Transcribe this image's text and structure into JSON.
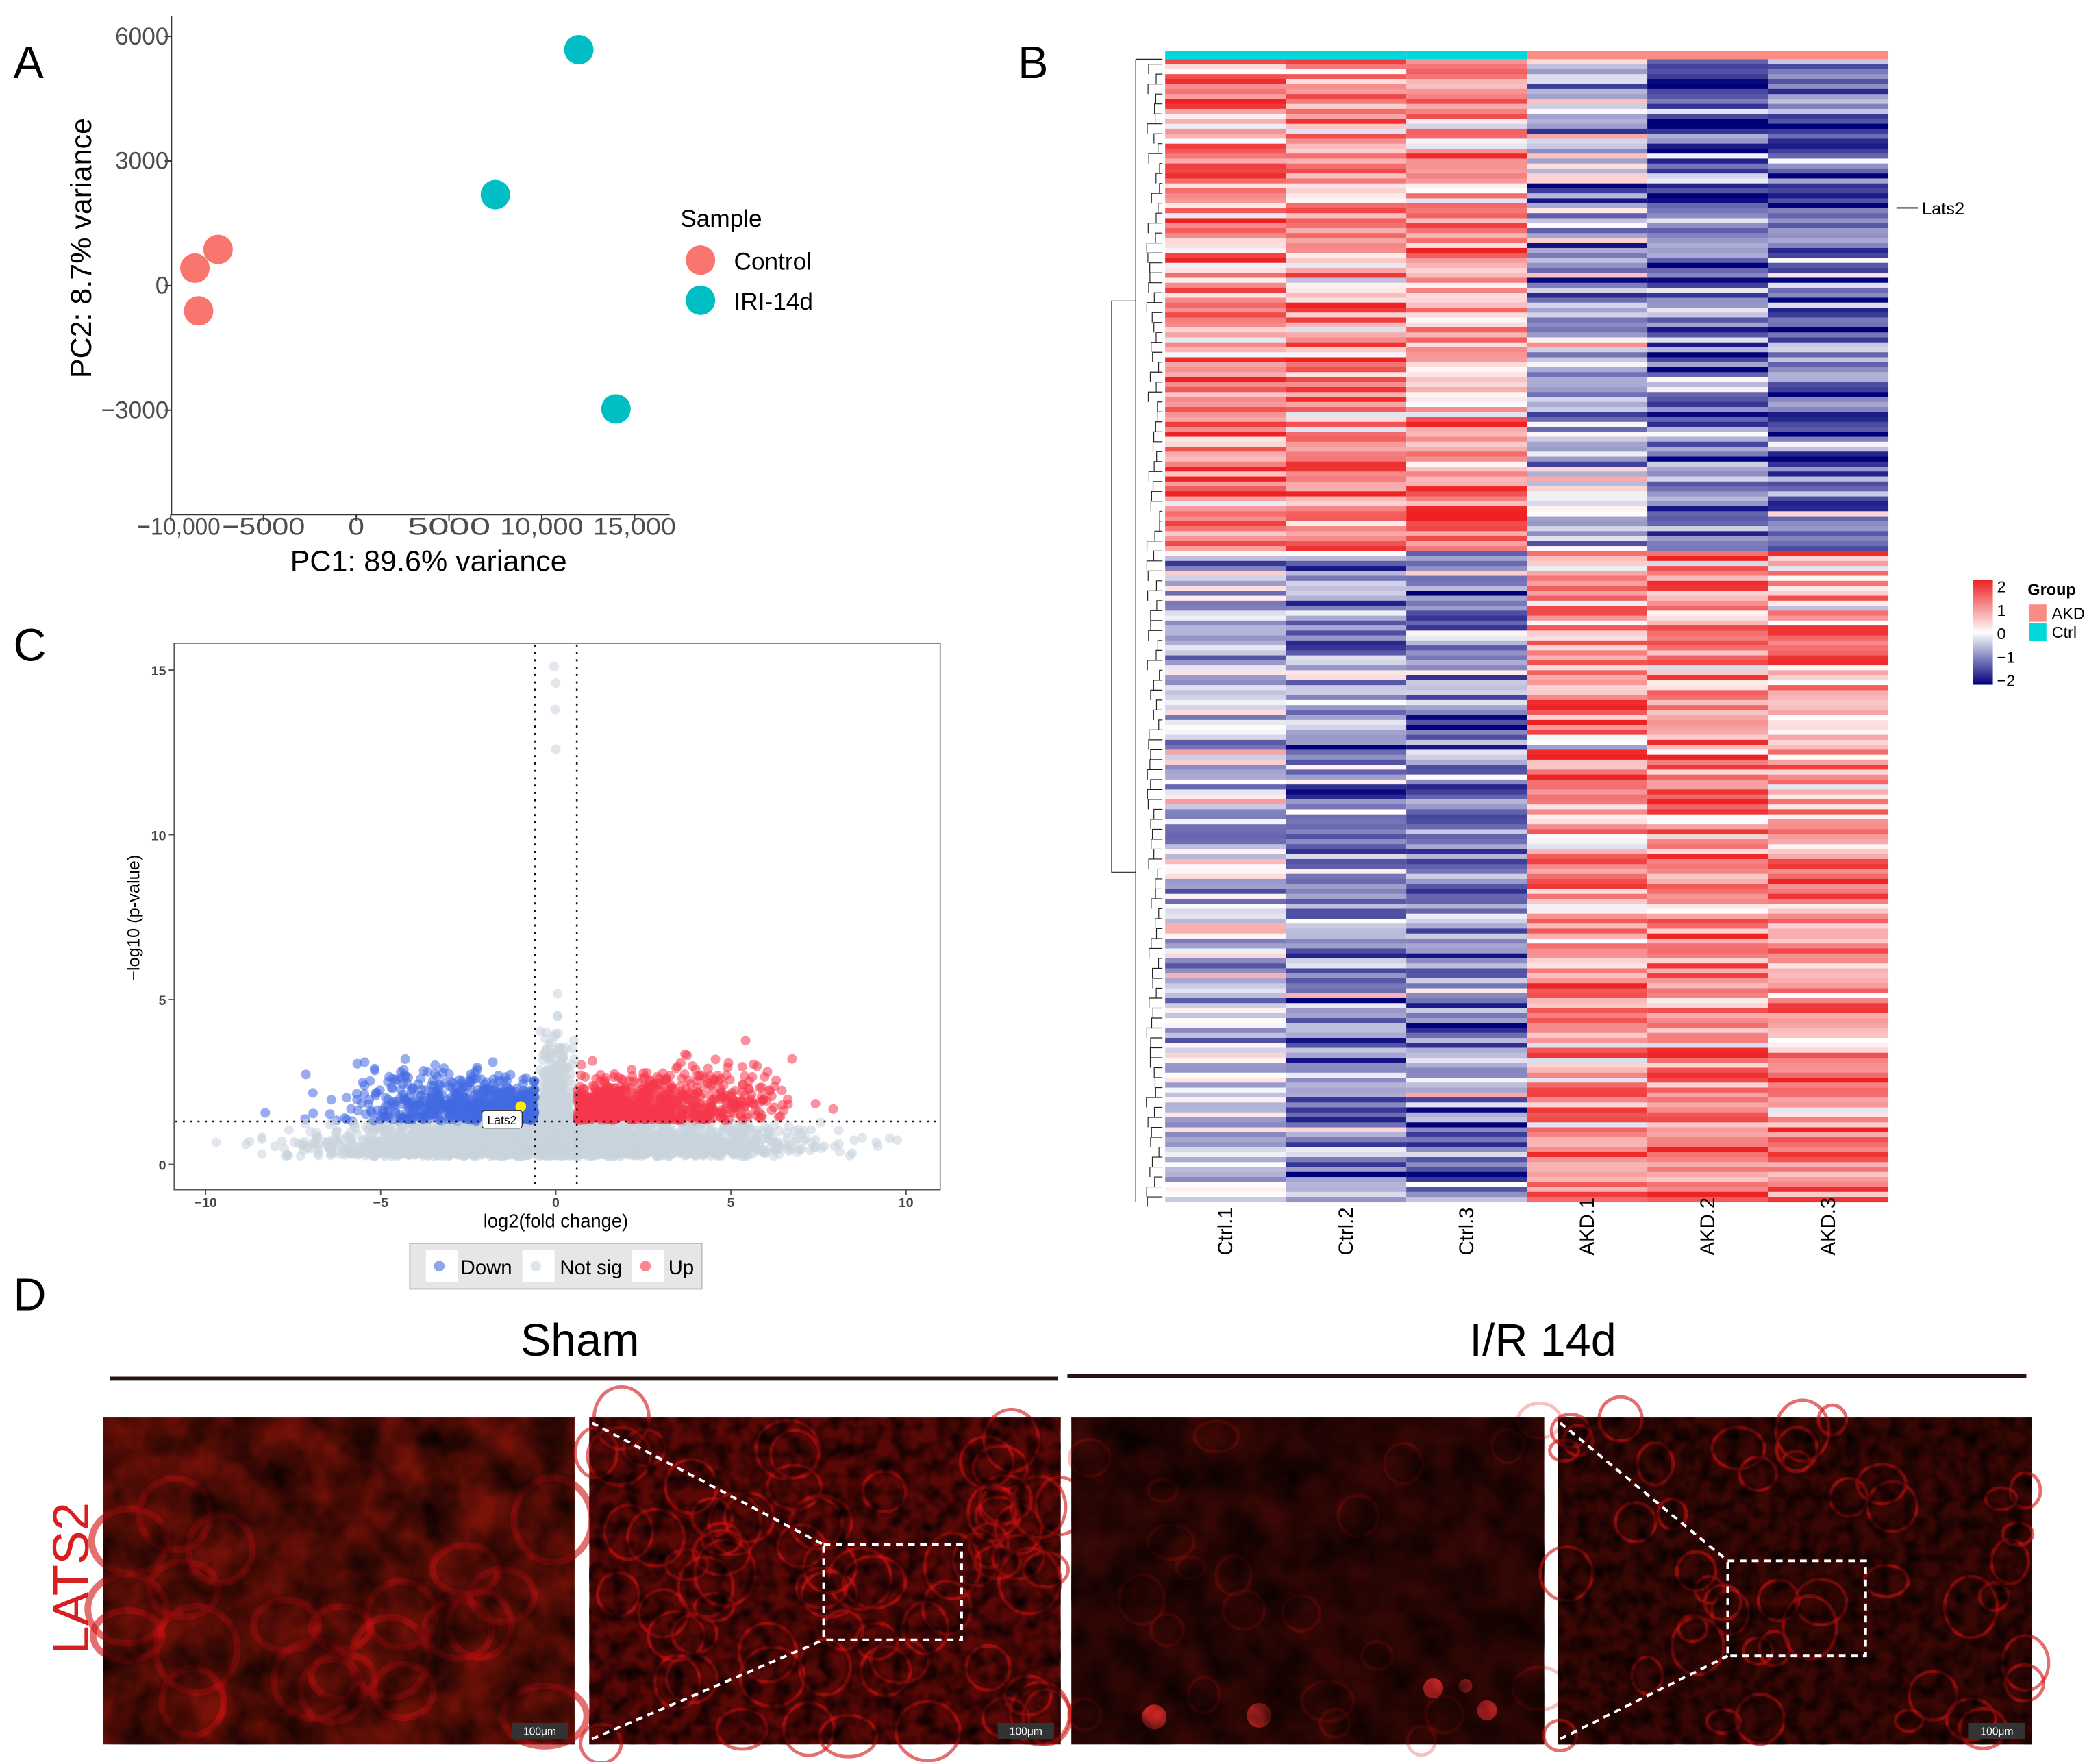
{
  "panel_labels": {
    "a": "A",
    "b": "B",
    "c": "C",
    "d": "D"
  },
  "colors": {
    "control": "#F8766D",
    "iri": "#00BFC4",
    "down": "#4169E1",
    "up": "#F5364B",
    "notsig": "#C8D3DC",
    "highlight": "#FFF200",
    "heat_high": "#EE2222",
    "heat_mid": "#FFFFFF",
    "heat_low": "#00007A",
    "akd": "#FB8C84",
    "ctrl": "#00D8DC",
    "stain": "#D01010"
  },
  "chart_data": [
    {
      "id": "pca",
      "type": "scatter",
      "xlabel": "PC1: 89.6% variance",
      "ylabel": "PC2: 8.7% variance",
      "xticks": [
        -10000,
        -5000,
        0,
        5000,
        10000,
        15000
      ],
      "xtick_labels": [
        "−10,000",
        "−5000",
        "0",
        "5000",
        "10,000",
        "15,000"
      ],
      "yticks": [
        -3000,
        0,
        3000,
        6000
      ],
      "ytick_labels": [
        "−3000",
        "0",
        "3000",
        "6000"
      ],
      "xlim": [
        -10000,
        17000
      ],
      "ylim": [
        -5300,
        6500
      ],
      "legend_title": "Sample",
      "legend_position": "right",
      "series": [
        {
          "name": "Control",
          "points": [
            [
              -8700,
              420
            ],
            [
              -7450,
              870
            ],
            [
              -8500,
              -610
            ]
          ]
        },
        {
          "name": "IRI-14d",
          "points": [
            [
              12000,
              5680
            ],
            [
              7500,
              2190
            ],
            [
              14000,
              -2970
            ]
          ]
        }
      ]
    },
    {
      "id": "heatmap",
      "type": "heatmap",
      "columns": [
        "Ctrl.1",
        "Ctrl.2",
        "Ctrl.3",
        "AKD.1",
        "AKD.2",
        "AKD.3"
      ],
      "column_groups": [
        "Ctrl",
        "Ctrl",
        "Ctrl",
        "AKD",
        "AKD",
        "AKD"
      ],
      "row_label": "Lats2",
      "scale_ticks": [
        "2",
        "1",
        "0",
        "−1",
        "−2"
      ],
      "scale_range": [
        -2,
        2
      ],
      "legend_title": "Group",
      "groups": [
        "AKD",
        "Ctrl"
      ],
      "clusters": [
        {
          "name": "up_in_ctrl",
          "fraction": 0.43,
          "ctrl_mean": 1.0,
          "akd_mean": -1.0
        },
        {
          "name": "up_in_akd",
          "fraction": 0.57,
          "ctrl_mean": -0.9,
          "akd_mean": 1.0
        }
      ]
    },
    {
      "id": "volcano",
      "type": "scatter",
      "xlabel": "log2(fold change)",
      "ylabel": "−log10 (p-value)",
      "xticks": [
        -10,
        -5,
        0,
        5,
        10
      ],
      "xtick_labels": [
        "−10",
        "−5",
        "0",
        "5",
        "10"
      ],
      "yticks": [
        0,
        5,
        10,
        15
      ],
      "ytick_labels": [
        "0",
        "5",
        "10",
        "15"
      ],
      "xlim": [
        -10.9,
        11
      ],
      "ylim": [
        -0.8,
        15.8
      ],
      "fc_threshold": 0.6,
      "p_threshold": 1.3,
      "legend": [
        "Down",
        "Not sig",
        "Up"
      ],
      "legend_position": "bottom",
      "top_points": [
        [
          -0.05,
          15.1
        ],
        [
          0.0,
          14.6
        ],
        [
          -0.02,
          13.8
        ],
        [
          0.0,
          12.6
        ]
      ],
      "highlight": {
        "label": "Lats2",
        "x": -1.0,
        "y": 1.75
      }
    }
  ],
  "panel_d": {
    "titles": [
      "Sham",
      "I/R 14d"
    ],
    "row_label": "LATS2",
    "scale_bar": "100μm"
  }
}
